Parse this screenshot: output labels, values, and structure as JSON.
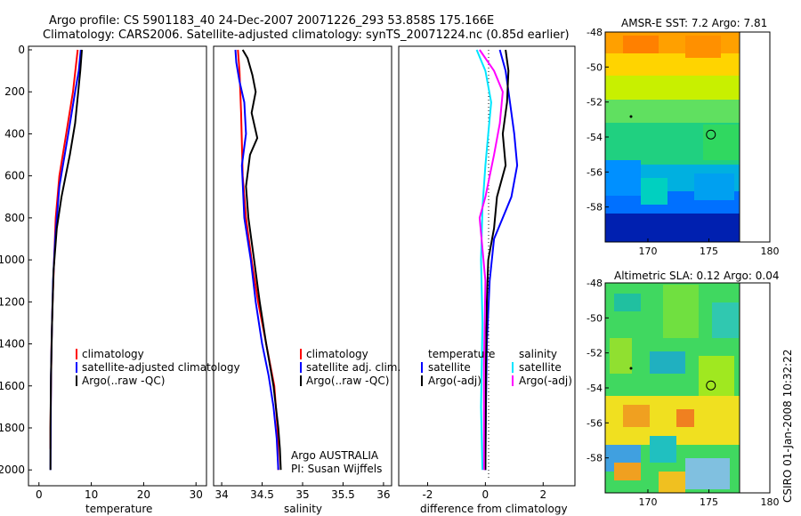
{
  "header": {
    "title_line1": "Argo profile: CS 5901183_40 24-Dec-2007 20071226_293 53.858S 175.166E",
    "title_line2": "Climatology: CARS2006. Satellite-adjusted climatology: synTS_20071224.nc (0.85d earlier)"
  },
  "colors": {
    "climatology": "#ff0000",
    "satellite": "#0000ff",
    "argo": "#000000",
    "diff_sat_salinity": "#00e5ff",
    "diff_argo_salinity": "#ff00ff"
  },
  "chart_data": [
    {
      "id": "temperature",
      "type": "line",
      "xlabel": "temperature",
      "xlim": [
        -2,
        32
      ],
      "ylim": [
        0,
        2050
      ],
      "y_reversed": true,
      "xticks": [
        "0",
        "10",
        "20",
        "30"
      ],
      "xtick_values": [
        0,
        10,
        20,
        30
      ],
      "yticks": [
        "0",
        "200",
        "400",
        "600",
        "800",
        "1000",
        "1200",
        "1400",
        "1600",
        "1800",
        "2000"
      ],
      "ytick_values": [
        0,
        200,
        400,
        600,
        800,
        1000,
        1200,
        1400,
        1600,
        1800,
        2000
      ],
      "series": [
        {
          "name": "climatology",
          "x": [
            7.4,
            6.5,
            5.2,
            3.9,
            3.2,
            2.9,
            2.6,
            2.4,
            2.3,
            2.2,
            2.2
          ],
          "y": [
            0,
            200,
            400,
            600,
            800,
            1000,
            1200,
            1400,
            1600,
            1800,
            1900
          ]
        },
        {
          "name": "satellite-adjusted climatology",
          "x": [
            8.0,
            7.6,
            6.9,
            5.6,
            3.9,
            3.1,
            2.7,
            2.45,
            2.3,
            2.25,
            2.2
          ],
          "y": [
            0,
            100,
            200,
            400,
            650,
            900,
            1100,
            1350,
            1550,
            1800,
            2000
          ]
        },
        {
          "name": "Argo(..raw -QC)",
          "x": [
            8.2,
            7.9,
            7.5,
            6.9,
            5.9,
            4.3,
            3.4,
            2.8,
            2.5,
            2.3,
            2.2,
            2.2
          ],
          "y": [
            0,
            100,
            200,
            350,
            500,
            700,
            850,
            1050,
            1300,
            1550,
            1800,
            2000
          ]
        }
      ],
      "legend": [
        "climatology",
        "satellite-adjusted climatology",
        "Argo(..raw -QC)"
      ]
    },
    {
      "id": "salinity",
      "type": "line",
      "xlabel": "salinity",
      "xlim": [
        33.9,
        36.1
      ],
      "ylim": [
        0,
        2050
      ],
      "y_reversed": true,
      "xticks": [
        "34",
        "34.5",
        "35",
        "35.5",
        "36"
      ],
      "xtick_values": [
        34,
        34.5,
        35,
        35.5,
        36
      ],
      "series": [
        {
          "name": "climatology",
          "x": [
            34.2,
            34.22,
            34.24,
            34.26,
            34.3,
            34.37,
            34.45,
            34.55,
            34.65,
            34.69,
            34.7
          ],
          "y": [
            0,
            100,
            300,
            600,
            800,
            1000,
            1200,
            1400,
            1600,
            1800,
            2000
          ]
        },
        {
          "name": "satellite adj. clim.",
          "x": [
            34.17,
            34.18,
            34.22,
            34.28,
            34.3,
            34.25,
            34.28,
            34.36,
            34.42,
            34.5,
            34.58,
            34.64,
            34.68,
            34.7
          ],
          "y": [
            0,
            60,
            150,
            250,
            400,
            550,
            800,
            1000,
            1200,
            1400,
            1550,
            1700,
            1850,
            2000
          ]
        },
        {
          "name": "Argo(..raw -QC)",
          "x": [
            34.26,
            34.32,
            34.38,
            34.42,
            34.37,
            34.44,
            34.35,
            34.3,
            34.33,
            34.4,
            34.47,
            34.55,
            34.64,
            34.7,
            34.72,
            34.73
          ],
          "y": [
            0,
            40,
            120,
            200,
            300,
            420,
            500,
            650,
            800,
            1000,
            1200,
            1400,
            1600,
            1800,
            1900,
            2000
          ]
        }
      ],
      "legend": [
        "climatology",
        "satellite adj. clim.",
        "Argo(..raw -QC)"
      ],
      "annotations": [
        "Argo AUSTRALIA",
        "PI: Susan Wijffels"
      ]
    },
    {
      "id": "difference",
      "type": "line",
      "xlabel": "difference from climatology",
      "xlim": [
        -3,
        3.1
      ],
      "ylim": [
        0,
        2050
      ],
      "y_reversed": true,
      "xticks": [
        "-2",
        "0",
        "2"
      ],
      "xtick_values": [
        -2,
        0,
        2
      ],
      "series": [
        {
          "name": "temperature satellite",
          "x": [
            0.5,
            0.7,
            0.85,
            1.0,
            1.1,
            0.9,
            0.6,
            0.3,
            0.15,
            0.05,
            0.02,
            0.0
          ],
          "y": [
            0,
            100,
            250,
            400,
            550,
            700,
            800,
            900,
            1100,
            1400,
            1700,
            2000
          ]
        },
        {
          "name": "temperature Argo(-adj)",
          "x": [
            0.7,
            0.8,
            0.75,
            0.6,
            0.7,
            0.4,
            0.3,
            0.1,
            0.05,
            0.02,
            0.0
          ],
          "y": [
            0,
            100,
            250,
            400,
            550,
            700,
            850,
            1000,
            1200,
            1500,
            2000
          ]
        },
        {
          "name": "salinity satellite",
          "x": [
            -0.3,
            0.0,
            0.2,
            0.1,
            0.0,
            -0.1,
            -0.15,
            -0.1,
            -0.15,
            -0.1
          ],
          "y": [
            0,
            100,
            250,
            400,
            550,
            750,
            1000,
            1300,
            1700,
            2000
          ]
        },
        {
          "name": "salinity Argo(-adj)",
          "x": [
            -0.2,
            0.3,
            0.6,
            0.5,
            0.3,
            0.0,
            -0.2,
            0.0,
            -0.05,
            -0.05
          ],
          "y": [
            0,
            100,
            200,
            350,
            500,
            700,
            800,
            1100,
            1500,
            2000
          ]
        }
      ],
      "legend": {
        "temperature_title": "temperature",
        "salinity_title": "salinity",
        "items": [
          "satellite",
          "Argo(-adj)",
          "satellite",
          "Argo(-adj)"
        ]
      }
    },
    {
      "id": "amsre_sst_map",
      "type": "heatmap",
      "title": "AMSR-E SST: 7.2 Argo: 7.81",
      "xticks": [
        "170",
        "175",
        "180"
      ],
      "xtick_values": [
        170,
        175,
        180
      ],
      "yticks": [
        "-48",
        "-50",
        "-52",
        "-54",
        "-56",
        "-58"
      ],
      "ytick_values": [
        -48,
        -50,
        -52,
        -54,
        -56,
        -58
      ],
      "xlim": [
        166.5,
        180
      ],
      "ylim": [
        -60,
        -48
      ],
      "marker": {
        "lon": 175.166,
        "lat": -53.858
      }
    },
    {
      "id": "altimetric_sla_map",
      "type": "heatmap",
      "title": "Altimetric SLA: 0.12 Argo: 0.04",
      "xticks": [
        "170",
        "175",
        "180"
      ],
      "xtick_values": [
        170,
        175,
        180
      ],
      "yticks": [
        "-48",
        "-50",
        "-52",
        "-54",
        "-56",
        "-58"
      ],
      "ytick_values": [
        -48,
        -50,
        -52,
        -54,
        -56,
        -58
      ],
      "xlim": [
        166.5,
        180
      ],
      "ylim": [
        -60,
        -48
      ],
      "marker": {
        "lon": 175.166,
        "lat": -53.858
      }
    }
  ],
  "footer": {
    "stamp": "CSIRO 01-Jan-2008 10:32:22"
  }
}
